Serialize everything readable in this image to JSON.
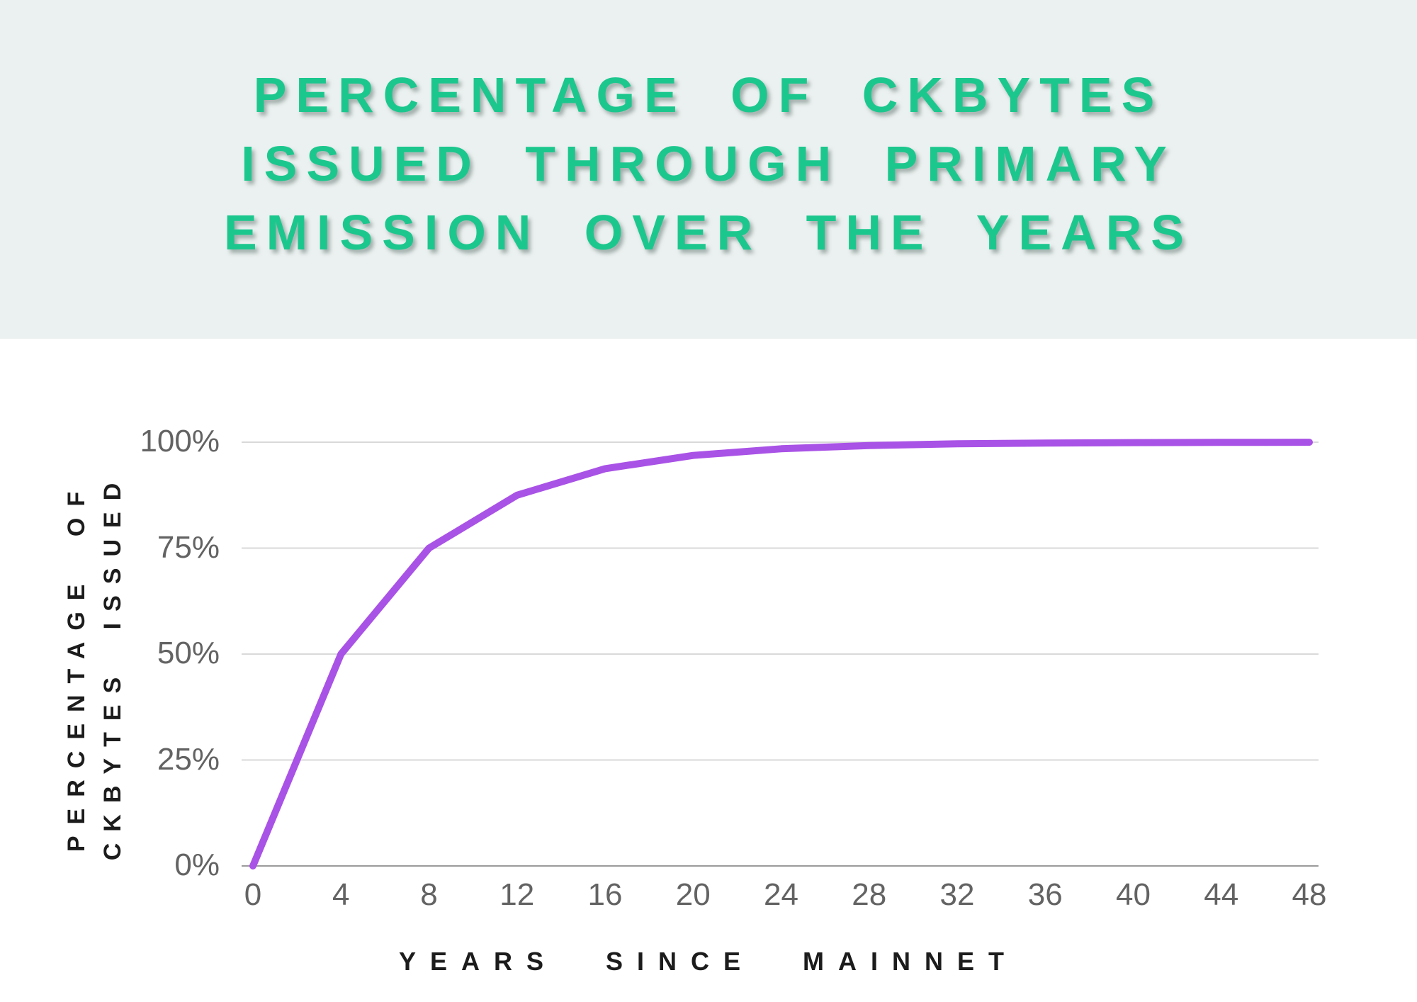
{
  "header": {
    "title_lines": [
      "PERCENTAGE OF CKBYTES",
      "ISSUED THROUGH PRIMARY",
      "EMISSION OVER THE YEARS"
    ],
    "title_color": "#1cc78e",
    "band_color": "#ebf1f0"
  },
  "chart_data": {
    "type": "line",
    "title": "PERCENTAGE OF CKBYTES ISSUED THROUGH PRIMARY EMISSION OVER THE YEARS",
    "xlabel": "YEARS SINCE MAINNET",
    "ylabel": "PERCENTAGE OF CKBYTES ISSUED",
    "ylabel_lines": [
      "PERCENTAGE OF",
      "CKBYTES ISSUED"
    ],
    "x": [
      0,
      4,
      8,
      12,
      16,
      20,
      24,
      28,
      32,
      36,
      40,
      44,
      48
    ],
    "y": [
      0,
      50,
      75,
      87.5,
      93.75,
      96.875,
      98.438,
      99.219,
      99.609,
      99.805,
      99.902,
      99.951,
      99.976
    ],
    "series_name": "Percentage of CKBytes issued",
    "xlim": [
      0,
      48
    ],
    "ylim": [
      0,
      100
    ],
    "xtick_values": [
      0,
      4,
      8,
      12,
      16,
      20,
      24,
      28,
      32,
      36,
      40,
      44,
      48
    ],
    "xticklabels": [
      "0",
      "4",
      "8",
      "12",
      "16",
      "20",
      "24",
      "28",
      "32",
      "36",
      "40",
      "44",
      "48"
    ],
    "ytick_values": [
      0,
      25,
      50,
      75,
      100
    ],
    "yticklabels": [
      "0%",
      "25%",
      "50%",
      "75%",
      "100%"
    ],
    "line_color": "#a952e6",
    "grid_color": "#d9d9d9",
    "axis_line_color": "#9b9b9b",
    "tick_color": "#636363",
    "grid": true,
    "legend": false
  }
}
